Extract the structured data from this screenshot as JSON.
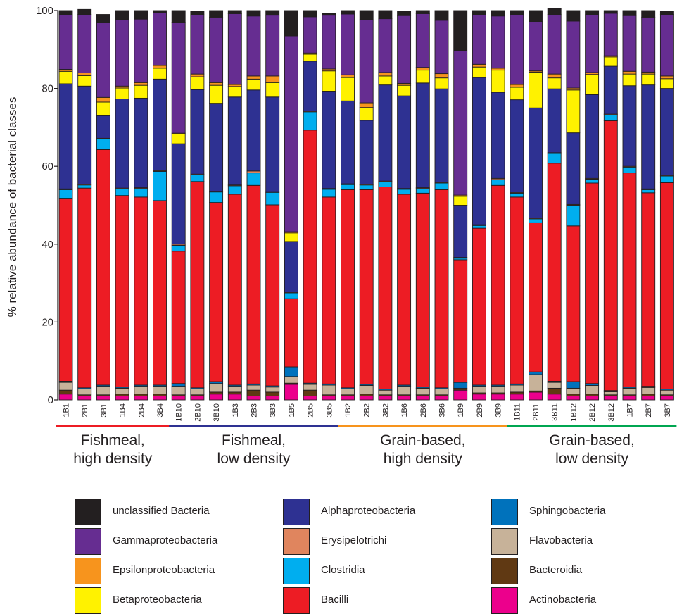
{
  "chart_data": {
    "type": "bar",
    "stacked": true,
    "ylabel": "% relative abundance of bacterial classes",
    "ylim": [
      0,
      100
    ],
    "yticks": [
      0,
      20,
      40,
      60,
      80,
      100
    ],
    "categories": [
      "1B1",
      "2B1",
      "3B1",
      "1B4",
      "2B4",
      "3B4",
      "1B10",
      "2B10",
      "3B10",
      "1B3",
      "2B3",
      "3B3",
      "1B5",
      "2B5",
      "3B5",
      "1B2",
      "2B2",
      "3B2",
      "1B6",
      "2B6",
      "3B6",
      "1B9",
      "2B9",
      "3B9",
      "1B11",
      "2B11",
      "3B11",
      "1B12",
      "2B12",
      "3B12",
      "1B7",
      "2B7",
      "3B7"
    ],
    "groups": [
      {
        "label": "Fishmeal,\nhigh density",
        "color": "#ed1c24",
        "samples": [
          0,
          5
        ]
      },
      {
        "label": "Fishmeal,\nlow density",
        "color": "#2e3192",
        "samples": [
          6,
          14
        ]
      },
      {
        "label": "Grain-based,\nhigh density",
        "color": "#f7941d",
        "samples": [
          15,
          23
        ]
      },
      {
        "label": "Grain-based,\nlow density",
        "color": "#00a651",
        "samples": [
          24,
          32
        ]
      }
    ],
    "series": [
      {
        "name": "Actinobacteria",
        "color": "#ec008c",
        "values": [
          1.5,
          1,
          1,
          1,
          1,
          1,
          1,
          1,
          1.5,
          1.5,
          1,
          1,
          4,
          1,
          1,
          1,
          1,
          1,
          1,
          1,
          1,
          2.5,
          1.5,
          1.5,
          1.5,
          2,
          1.5,
          1,
          1,
          1,
          1,
          1,
          1
        ]
      },
      {
        "name": "Bacteroidia",
        "color": "#603913",
        "values": [
          1,
          0.3,
          0.3,
          0.5,
          0.5,
          0.5,
          0.3,
          0.3,
          0.5,
          0.5,
          1.5,
          1,
          0.3,
          1.5,
          0.3,
          0.3,
          0.5,
          0.3,
          0.3,
          0.3,
          0.3,
          0.3,
          0.3,
          0.3,
          0.5,
          0.3,
          1.5,
          0.5,
          0.5,
          0.3,
          0.3,
          0.5,
          0.3
        ]
      },
      {
        "name": "Flavobacteria",
        "color": "#c7b299",
        "values": [
          2,
          1.5,
          2.2,
          1.5,
          2,
          2,
          2.2,
          1.5,
          2.2,
          1.5,
          1.3,
          1.3,
          1.7,
          1.5,
          2.5,
          1.5,
          2.2,
          1.2,
          2.2,
          1.7,
          1.5,
          0.2,
          1.7,
          1.7,
          1.8,
          4.2,
          1.5,
          1.5,
          2.2,
          0.8,
          1.7,
          1.7,
          1.2
        ]
      },
      {
        "name": "Sphingobacteria",
        "color": "#0072bc",
        "values": [
          0.3,
          0.3,
          0.3,
          0.3,
          0.3,
          0.3,
          0.7,
          0.3,
          0.5,
          0.3,
          0.3,
          0.3,
          2.5,
          0.3,
          0.3,
          0.3,
          0.3,
          0.3,
          0.3,
          0.3,
          0.3,
          1.5,
          0.3,
          0.3,
          0.3,
          0.7,
          0.3,
          1.7,
          0.5,
          0.3,
          0.3,
          0.3,
          0.3
        ]
      },
      {
        "name": "Bacilli",
        "color": "#ed1c24",
        "values": [
          47,
          51.3,
          60.5,
          49.2,
          48.3,
          47.4,
          34,
          53,
          46,
          49,
          51,
          46.5,
          17.5,
          65,
          48,
          50.9,
          50,
          51.9,
          49,
          49.8,
          50.9,
          31.5,
          40.3,
          51.3,
          48,
          38.3,
          56,
          40,
          51.5,
          69.3,
          55,
          49.7,
          53
        ]
      },
      {
        "name": "Clostridia",
        "color": "#00aeef",
        "values": [
          2.2,
          0.8,
          2.7,
          1.7,
          2.2,
          7.5,
          1.5,
          1.7,
          2.7,
          2.2,
          3.2,
          3.2,
          1.5,
          4.7,
          2,
          1.3,
          1.2,
          1.3,
          1.3,
          1.2,
          1.7,
          0.4,
          0.7,
          1.5,
          1,
          1,
          2.5,
          5.3,
          1,
          1.5,
          1.5,
          0.8,
          1.7
        ]
      },
      {
        "name": "Erysipelotrichi",
        "color": "#e0855e",
        "values": [
          0.2,
          0.2,
          0.2,
          0.2,
          0.2,
          0.2,
          0.3,
          0.2,
          0.2,
          0.2,
          0.5,
          0.2,
          0.2,
          0.2,
          0.2,
          0.2,
          0.2,
          0.2,
          0.2,
          0.2,
          0.2,
          0.2,
          0.2,
          0.3,
          0.2,
          0.2,
          0.2,
          0.2,
          0.2,
          0.2,
          0.2,
          0.2,
          0.2
        ]
      },
      {
        "name": "Alphaproteobacteria",
        "color": "#2e3192",
        "values": [
          27,
          25.2,
          5.8,
          22.9,
          23,
          23.5,
          25.8,
          21.7,
          22.6,
          22.6,
          20.8,
          24.3,
          13,
          12.8,
          25,
          21.3,
          16.4,
          24.7,
          23.8,
          26.9,
          24,
          13.4,
          37.8,
          22.1,
          23.8,
          28.3,
          16.4,
          18.4,
          21.5,
          12.3,
          20.7,
          26.7,
          22.3
        ]
      },
      {
        "name": "Betaproteobacteria",
        "color": "#fff200",
        "values": [
          3.2,
          2.7,
          3.5,
          2.8,
          3.3,
          2.8,
          2.5,
          3.3,
          4.6,
          2.7,
          2.8,
          3.7,
          2.2,
          1.8,
          5.2,
          6,
          3.3,
          2.3,
          2.7,
          3.3,
          2.8,
          2.3,
          2.7,
          5.7,
          3.2,
          9.2,
          2.8,
          11,
          5.2,
          2.4,
          3,
          2.8,
          2.5
        ]
      },
      {
        "name": "Epsilonproteobacteria",
        "color": "#f7941d",
        "values": [
          0.5,
          0.7,
          1.2,
          0.5,
          0.7,
          0.7,
          0.2,
          0.7,
          0.7,
          0.5,
          0.8,
          1.7,
          0.3,
          0.3,
          0.5,
          0.7,
          1.2,
          0.9,
          0.5,
          0.7,
          1.1,
          0.3,
          0.7,
          0.5,
          0.7,
          0.3,
          1,
          0.5,
          0.5,
          0.3,
          0.7,
          0.5,
          0.7
        ]
      },
      {
        "name": "Gammaproteobacteria",
        "color": "#662d91",
        "values": [
          14,
          15,
          19.3,
          17.1,
          16.3,
          13.6,
          28.5,
          15.2,
          16.8,
          18.2,
          15.4,
          15.6,
          50.3,
          9.3,
          13.8,
          15.6,
          21.3,
          13.8,
          17.4,
          13.8,
          13.7,
          37,
          12.7,
          13.4,
          18,
          12.7,
          15.3,
          17.2,
          14.8,
          10.9,
          14.3,
          14.1,
          15.8
        ]
      },
      {
        "name": "unclassified Bacteria",
        "color": "#231f20",
        "values": [
          1.1,
          1.3,
          2.0,
          2.3,
          2.2,
          0.5,
          3,
          0.9,
          1.7,
          0.8,
          1.4,
          1.2,
          6.5,
          1.6,
          0.4,
          0.9,
          2.4,
          2.1,
          1.1,
          0.8,
          2.5,
          10.4,
          1.1,
          1.4,
          1,
          2.8,
          1.5,
          2.7,
          1.1,
          0.7,
          1.3,
          1.7,
          0.8
        ]
      }
    ],
    "legend_order": [
      "unclassified Bacteria",
      "Gammaproteobacteria",
      "Epsilonproteobacteria",
      "Betaproteobacteria",
      "Alphaproteobacteria",
      "Erysipelotrichi",
      "Clostridia",
      "Bacilli",
      "Sphingobacteria",
      "Flavobacteria",
      "Bacteroidia",
      "Actinobacteria"
    ],
    "legend_placement": "bottom",
    "grid": false
  }
}
